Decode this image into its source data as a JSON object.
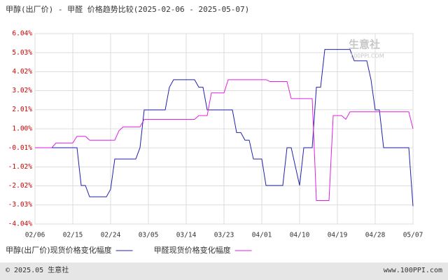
{
  "chart_data": {
    "type": "line",
    "title": "甲醇(出厂价) - 甲醛 价格趋势比较(2025-02-06 - 2025-05-07)",
    "categories": [
      "02/06",
      null,
      null,
      null,
      null,
      null,
      null,
      null,
      null,
      "02/15",
      null,
      null,
      null,
      null,
      null,
      null,
      null,
      null,
      "02/24",
      null,
      null,
      null,
      null,
      null,
      null,
      null,
      null,
      "03/05",
      null,
      null,
      null,
      null,
      null,
      null,
      null,
      null,
      "03/14",
      null,
      null,
      null,
      null,
      null,
      null,
      null,
      null,
      "03/23",
      null,
      null,
      null,
      null,
      null,
      null,
      null,
      null,
      "04/01",
      null,
      null,
      null,
      null,
      null,
      null,
      null,
      null,
      "04/10",
      null,
      null,
      null,
      null,
      null,
      null,
      null,
      null,
      "04/19",
      null,
      null,
      null,
      null,
      null,
      null,
      null,
      null,
      "04/28",
      null,
      null,
      null,
      null,
      null,
      null,
      null,
      null,
      "05/07"
    ],
    "series": [
      {
        "name": "甲醇(出厂价)现货价格变化幅度",
        "color": "#2020b0",
        "values": [
          0,
          0,
          0,
          0,
          0,
          0,
          0,
          0,
          0,
          0,
          0,
          -2.0,
          -2.0,
          -2.6,
          -2.6,
          -2.6,
          -2.6,
          -2.6,
          -2.2,
          -0.6,
          -0.6,
          -0.6,
          -0.6,
          -0.6,
          -0.6,
          0,
          2.0,
          2.0,
          2.0,
          2.0,
          2.0,
          2.0,
          3.2,
          3.6,
          3.6,
          3.6,
          3.6,
          3.6,
          3.6,
          3.2,
          3.2,
          2.0,
          2.0,
          2.0,
          2.0,
          2.0,
          2.0,
          2.0,
          0.8,
          0.8,
          0.4,
          0.4,
          -0.6,
          -0.6,
          -0.6,
          -2.0,
          -2.0,
          -2.0,
          -2.0,
          -2.0,
          0,
          0,
          -1.0,
          -2.0,
          0,
          0,
          0,
          3.2,
          3.2,
          5.2,
          5.2,
          5.2,
          5.2,
          5.2,
          5.2,
          5.2,
          4.6,
          4.6,
          4.6,
          4.6,
          3.6,
          2.0,
          2.0,
          0,
          0,
          0,
          0,
          0,
          0,
          0,
          -3.1
        ]
      },
      {
        "name": "甲醛现货价格变化幅度",
        "color": "#e020e0",
        "values": [
          0,
          0,
          0,
          0,
          0,
          0.25,
          0.25,
          0.25,
          0.25,
          0.25,
          0.6,
          0.6,
          0.6,
          0.4,
          0.4,
          0.4,
          0.4,
          0.4,
          0.4,
          0.4,
          0.9,
          1.1,
          1.1,
          1.1,
          1.1,
          1.1,
          1.5,
          1.5,
          1.5,
          1.5,
          1.5,
          1.5,
          1.5,
          1.5,
          1.5,
          1.5,
          1.5,
          1.5,
          1.5,
          1.7,
          1.7,
          1.7,
          2.9,
          2.9,
          2.9,
          2.9,
          3.6,
          3.6,
          3.6,
          3.6,
          3.6,
          3.6,
          3.6,
          3.6,
          3.6,
          3.6,
          3.5,
          3.5,
          3.5,
          3.5,
          3.5,
          2.6,
          2.6,
          2.6,
          2.6,
          2.6,
          2.6,
          -2.8,
          -2.8,
          -2.8,
          -2.8,
          1.7,
          1.7,
          1.7,
          1.5,
          1.9,
          1.9,
          1.9,
          1.9,
          1.9,
          1.9,
          1.9,
          1.9,
          1.9,
          1.9,
          1.9,
          1.9,
          1.9,
          1.9,
          1.9,
          1.0
        ]
      }
    ],
    "ylim": [
      -4.04,
      6.04
    ],
    "yticks": [
      {
        "value": 6.04,
        "label": "6.04%"
      },
      {
        "value": 5.03,
        "label": "5.03%"
      },
      {
        "value": 4.02,
        "label": "4.02%"
      },
      {
        "value": 3.02,
        "label": "3.02%"
      },
      {
        "value": 2.01,
        "label": "2.01%"
      },
      {
        "value": 1.0,
        "label": "1.00%"
      },
      {
        "value": -0.01,
        "label": "-0.01%"
      },
      {
        "value": -1.02,
        "label": "-1.02%"
      },
      {
        "value": -2.02,
        "label": "-2.02%"
      },
      {
        "value": -3.03,
        "label": "-3.03%"
      },
      {
        "value": -4.04,
        "label": "-4.04%"
      }
    ],
    "grid": true
  },
  "watermark": {
    "name": "生意社",
    "site": "100PPI.COM"
  },
  "footer": {
    "left": "© 2025.05 生意社",
    "right": "www.100PPI.com"
  }
}
